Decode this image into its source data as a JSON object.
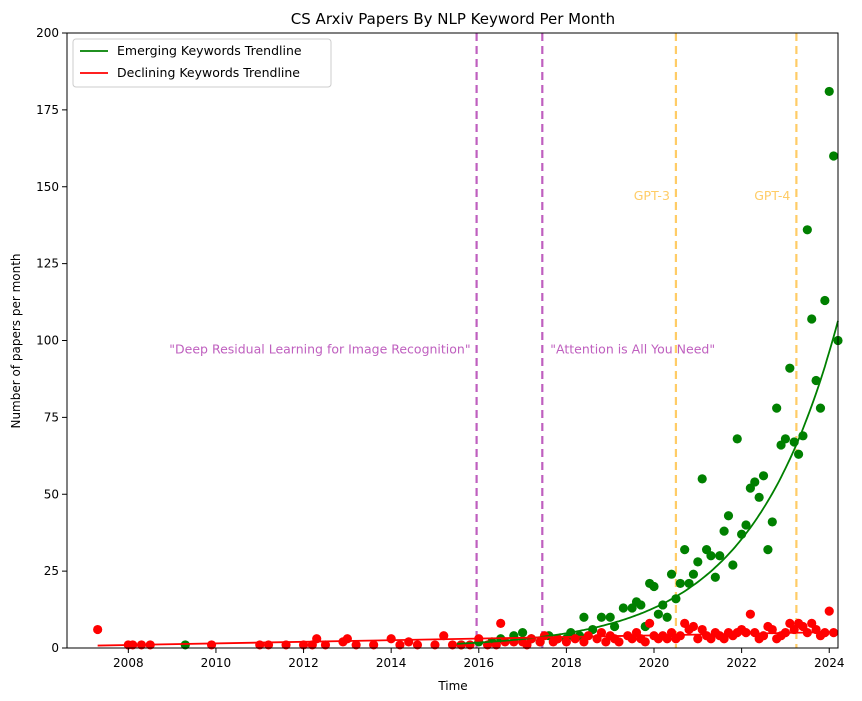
{
  "chart_data": {
    "type": "scatter",
    "title": "CS Arxiv Papers By NLP Keyword Per Month",
    "xlabel": "Time",
    "ylabel": "Number of papers per month",
    "xlim": [
      2006.6,
      2024.2
    ],
    "ylim": [
      0,
      200
    ],
    "xticks": [
      2008,
      2010,
      2012,
      2014,
      2016,
      2018,
      2020,
      2022,
      2024
    ],
    "yticks": [
      0,
      25,
      50,
      75,
      100,
      125,
      150,
      175,
      200
    ],
    "legend": [
      {
        "label": "Emerging Keywords Trendline",
        "color": "#008000"
      },
      {
        "label": "Declining Keywords Trendline",
        "color": "#ff0000"
      }
    ],
    "vlines": [
      {
        "x": 2015.95,
        "color": "#bf5fbf",
        "label": "\"Deep Residual Learning for Image Recognition\"",
        "label_y": 97,
        "align": "end"
      },
      {
        "x": 2017.45,
        "color": "#bf5fbf",
        "label": "\"Attention is All You Need\"",
        "label_y": 97,
        "align": "start"
      },
      {
        "x": 2020.5,
        "color": "#ffcc66",
        "label": "GPT-3",
        "label_y": 147,
        "align": "end"
      },
      {
        "x": 2023.25,
        "color": "#ffcc66",
        "label": "GPT-4",
        "label_y": 147,
        "align": "end"
      }
    ],
    "series": [
      {
        "name": "Emerging Keywords",
        "color": "#008000",
        "points": [
          [
            2009.3,
            1
          ],
          [
            2015.6,
            1
          ],
          [
            2016.0,
            2
          ],
          [
            2016.3,
            2
          ],
          [
            2016.5,
            3
          ],
          [
            2016.8,
            4
          ],
          [
            2017.0,
            5
          ],
          [
            2017.2,
            3
          ],
          [
            2017.4,
            2
          ],
          [
            2017.6,
            4
          ],
          [
            2017.8,
            3
          ],
          [
            2018.0,
            3
          ],
          [
            2018.1,
            5
          ],
          [
            2018.3,
            4
          ],
          [
            2018.4,
            10
          ],
          [
            2018.6,
            6
          ],
          [
            2018.8,
            10
          ],
          [
            2019.0,
            10
          ],
          [
            2019.1,
            7
          ],
          [
            2019.3,
            13
          ],
          [
            2019.5,
            13
          ],
          [
            2019.6,
            15
          ],
          [
            2019.7,
            14
          ],
          [
            2019.8,
            7
          ],
          [
            2019.9,
            21
          ],
          [
            2020.0,
            20
          ],
          [
            2020.1,
            11
          ],
          [
            2020.2,
            14
          ],
          [
            2020.3,
            10
          ],
          [
            2020.4,
            24
          ],
          [
            2020.5,
            16
          ],
          [
            2020.6,
            21
          ],
          [
            2020.7,
            32
          ],
          [
            2020.8,
            21
          ],
          [
            2020.9,
            24
          ],
          [
            2021.0,
            28
          ],
          [
            2021.1,
            55
          ],
          [
            2021.2,
            32
          ],
          [
            2021.3,
            30
          ],
          [
            2021.4,
            23
          ],
          [
            2021.5,
            30
          ],
          [
            2021.6,
            38
          ],
          [
            2021.7,
            43
          ],
          [
            2021.8,
            27
          ],
          [
            2021.9,
            68
          ],
          [
            2022.0,
            37
          ],
          [
            2022.1,
            40
          ],
          [
            2022.2,
            52
          ],
          [
            2022.3,
            54
          ],
          [
            2022.4,
            49
          ],
          [
            2022.5,
            56
          ],
          [
            2022.6,
            32
          ],
          [
            2022.7,
            41
          ],
          [
            2022.8,
            78
          ],
          [
            2022.9,
            66
          ],
          [
            2023.0,
            68
          ],
          [
            2023.1,
            91
          ],
          [
            2023.2,
            67
          ],
          [
            2023.3,
            63
          ],
          [
            2023.4,
            69
          ],
          [
            2023.5,
            136
          ],
          [
            2023.6,
            107
          ],
          [
            2023.7,
            87
          ],
          [
            2023.8,
            78
          ],
          [
            2023.9,
            113
          ],
          [
            2024.0,
            181
          ],
          [
            2024.1,
            160
          ],
          [
            2024.2,
            100
          ]
        ],
        "trend": {
          "a": 0.0138,
          "b": 0.5,
          "x0": 2006.3
        }
      },
      {
        "name": "Declining Keywords",
        "color": "#ff0000",
        "points": [
          [
            2007.3,
            6
          ],
          [
            2008.0,
            1
          ],
          [
            2008.1,
            1
          ],
          [
            2008.3,
            1
          ],
          [
            2008.5,
            1
          ],
          [
            2009.9,
            1
          ],
          [
            2011.0,
            1
          ],
          [
            2011.2,
            1
          ],
          [
            2011.6,
            1
          ],
          [
            2012.0,
            1
          ],
          [
            2012.2,
            1
          ],
          [
            2012.3,
            3
          ],
          [
            2012.5,
            1
          ],
          [
            2012.9,
            2
          ],
          [
            2013.0,
            3
          ],
          [
            2013.2,
            1
          ],
          [
            2013.6,
            1
          ],
          [
            2014.0,
            3
          ],
          [
            2014.2,
            1
          ],
          [
            2014.4,
            2
          ],
          [
            2014.6,
            1
          ],
          [
            2015.0,
            1
          ],
          [
            2015.2,
            4
          ],
          [
            2015.4,
            1
          ],
          [
            2015.6,
            1
          ],
          [
            2015.8,
            1
          ],
          [
            2016.0,
            3
          ],
          [
            2016.2,
            1
          ],
          [
            2016.4,
            1
          ],
          [
            2016.5,
            8
          ],
          [
            2016.6,
            2
          ],
          [
            2016.8,
            2
          ],
          [
            2017.0,
            2
          ],
          [
            2017.1,
            1
          ],
          [
            2017.2,
            3
          ],
          [
            2017.4,
            2
          ],
          [
            2017.5,
            4
          ],
          [
            2017.7,
            2
          ],
          [
            2017.8,
            3
          ],
          [
            2018.0,
            2
          ],
          [
            2018.2,
            3
          ],
          [
            2018.4,
            2
          ],
          [
            2018.5,
            4
          ],
          [
            2018.7,
            3
          ],
          [
            2018.8,
            5
          ],
          [
            2018.9,
            2
          ],
          [
            2019.0,
            4
          ],
          [
            2019.1,
            3
          ],
          [
            2019.2,
            2
          ],
          [
            2019.4,
            4
          ],
          [
            2019.5,
            3
          ],
          [
            2019.6,
            5
          ],
          [
            2019.7,
            3
          ],
          [
            2019.8,
            2
          ],
          [
            2019.9,
            8
          ],
          [
            2020.0,
            4
          ],
          [
            2020.1,
            3
          ],
          [
            2020.2,
            4
          ],
          [
            2020.3,
            3
          ],
          [
            2020.4,
            5
          ],
          [
            2020.5,
            3
          ],
          [
            2020.6,
            4
          ],
          [
            2020.7,
            8
          ],
          [
            2020.8,
            6
          ],
          [
            2020.9,
            7
          ],
          [
            2021.0,
            3
          ],
          [
            2021.1,
            6
          ],
          [
            2021.2,
            4
          ],
          [
            2021.3,
            3
          ],
          [
            2021.4,
            5
          ],
          [
            2021.5,
            4
          ],
          [
            2021.6,
            3
          ],
          [
            2021.7,
            5
          ],
          [
            2021.8,
            4
          ],
          [
            2021.9,
            5
          ],
          [
            2022.0,
            6
          ],
          [
            2022.1,
            5
          ],
          [
            2022.2,
            11
          ],
          [
            2022.3,
            5
          ],
          [
            2022.4,
            3
          ],
          [
            2022.5,
            4
          ],
          [
            2022.6,
            7
          ],
          [
            2022.7,
            6
          ],
          [
            2022.8,
            3
          ],
          [
            2022.9,
            4
          ],
          [
            2023.0,
            5
          ],
          [
            2023.1,
            8
          ],
          [
            2023.2,
            6
          ],
          [
            2023.3,
            8
          ],
          [
            2023.4,
            7
          ],
          [
            2023.5,
            5
          ],
          [
            2023.6,
            8
          ],
          [
            2023.7,
            6
          ],
          [
            2023.8,
            4
          ],
          [
            2023.9,
            5
          ],
          [
            2024.0,
            12
          ],
          [
            2024.1,
            5
          ]
        ],
        "trend": {
          "start": [
            2007.3,
            0.8
          ],
          "end": [
            2024.2,
            5.2
          ]
        }
      }
    ]
  }
}
